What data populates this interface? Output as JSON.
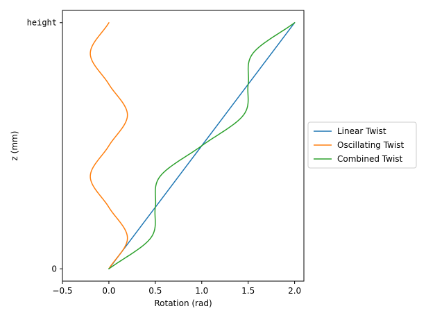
{
  "chart_data": {
    "type": "line",
    "title": "",
    "xlabel": "Rotation (rad)",
    "ylabel": "z (mm)",
    "xlim": [
      -0.5,
      2.1
    ],
    "ylim": [
      -0.05,
      1.05
    ],
    "x_ticks": [
      -0.5,
      0.0,
      0.5,
      1.0,
      1.5,
      2.0
    ],
    "x_tick_labels": [
      "−0.5",
      "0.0",
      "0.5",
      "1.0",
      "1.5",
      "2.0"
    ],
    "y_ticks": [
      0,
      1
    ],
    "y_tick_labels": [
      "0",
      "height"
    ],
    "legend_position": "right-outside",
    "series": [
      {
        "name": "Linear Twist",
        "color": "#1f77b4",
        "z": [
          0,
          0.1,
          0.2,
          0.3,
          0.4,
          0.5,
          0.6,
          0.7,
          0.8,
          0.9,
          1.0
        ],
        "rotation": [
          0,
          0.2,
          0.4,
          0.6,
          0.8,
          1.0,
          1.2,
          1.4,
          1.6,
          1.8,
          2.0
        ]
      },
      {
        "name": "Oscillating Twist",
        "color": "#ff7f0e",
        "z": [
          0,
          0.125,
          0.25,
          0.375,
          0.5,
          0.625,
          0.75,
          0.875,
          1.0
        ],
        "rotation": [
          0,
          0.2,
          0,
          -0.2,
          0,
          0.2,
          0,
          -0.2,
          0
        ]
      },
      {
        "name": "Combined Twist",
        "color": "#2ca02c",
        "z": [
          0,
          0.125,
          0.25,
          0.375,
          0.5,
          0.625,
          0.75,
          0.875,
          1.0
        ],
        "rotation": [
          0,
          0.45,
          0.5,
          0.55,
          1.0,
          1.45,
          1.5,
          1.55,
          2.0
        ]
      }
    ]
  }
}
